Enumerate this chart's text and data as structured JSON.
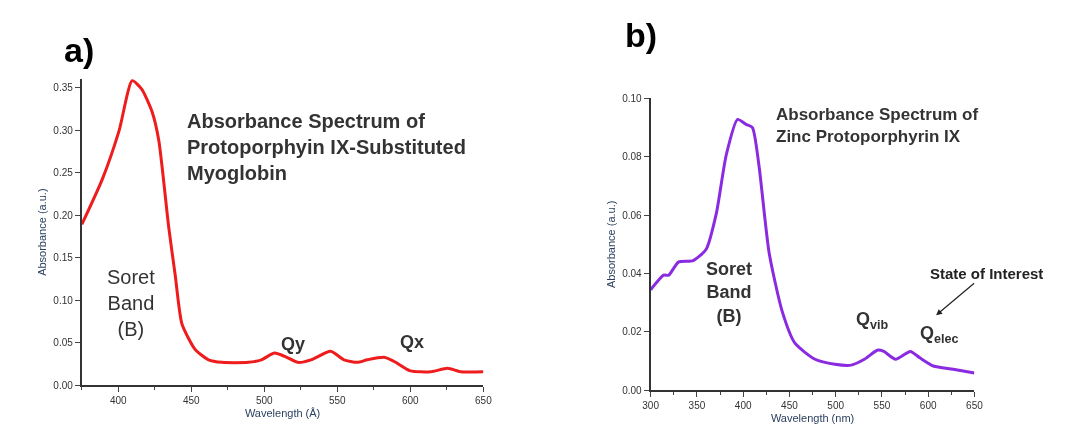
{
  "chart_data": [
    {
      "type": "line",
      "title": "a)",
      "xlabel": "Wavelength (Å)",
      "ylabel": "Absorbance (a.u.)",
      "annotations": [
        "Absorbance Spectrum of Protoporphyin IX-Substituted Myoglobin",
        "Soret Band (B)",
        "Qy",
        "Qx"
      ],
      "series": [
        {
          "color": "#ee1c1c",
          "x": [
            375,
            389,
            400.5,
            409.5,
            416,
            423,
            427.7,
            434.5,
            439,
            443.6,
            452.7,
            461.8,
            471,
            489,
            498,
            507,
            514,
            523,
            532,
            545.5,
            554.5,
            563.6,
            570.5,
            582,
            589,
            600,
            614,
            625.5,
            634.5,
            650
          ],
          "values": [
            0.189,
            0.242,
            0.299,
            0.358,
            0.348,
            0.322,
            0.288,
            0.186,
            0.129,
            0.072,
            0.042,
            0.03,
            0.027,
            0.027,
            0.03,
            0.038,
            0.034,
            0.027,
            0.03,
            0.04,
            0.03,
            0.027,
            0.03,
            0.033,
            0.028,
            0.017,
            0.016,
            0.02,
            0.016,
            0.016
          ]
        }
      ],
      "xlim": [
        375,
        650
      ],
      "xticks": [
        400,
        450,
        500,
        550,
        600,
        650
      ],
      "ylim": [
        0,
        0.36
      ],
      "yticks": [
        {
          "value": 0,
          "label": "0.00"
        },
        {
          "value": 0.05,
          "label": "0.05"
        },
        {
          "value": 0.1,
          "label": "0.10"
        },
        {
          "value": 0.15,
          "label": "0.15"
        },
        {
          "value": 0.2,
          "label": "0.20"
        },
        {
          "value": 0.25,
          "label": "0.25"
        },
        {
          "value": 0.3,
          "label": "0.30"
        },
        {
          "value": 0.35,
          "label": "0.35"
        }
      ],
      "marker": "none",
      "line_style": "solid"
    },
    {
      "type": "line",
      "title": "b)",
      "xlabel": "Wavelength (nm)",
      "ylabel": "Absorbance (a.u.)",
      "annotations": [
        "Absorbance Spectrum of Zinc Protoporphyrin IX",
        "Soret Band (B)",
        "Q$_{vib}$",
        "Q$_{elec}$",
        "State of Interest"
      ],
      "series": [
        {
          "color": "#8a2be2",
          "x": [
            300,
            314,
            319.5,
            330,
            346,
            360,
            371,
            381.7,
            394,
            403,
            410,
            417,
            428,
            442,
            456,
            477.7,
            499,
            516.8,
            531,
            545,
            552,
            564.8,
            580.7,
            591,
            605.6,
            627,
            650
          ],
          "values": [
            0.0344,
            0.0394,
            0.0394,
            0.0439,
            0.0444,
            0.0483,
            0.0606,
            0.0806,
            0.0928,
            0.0911,
            0.09,
            0.0772,
            0.0472,
            0.0272,
            0.0161,
            0.0106,
            0.0089,
            0.0086,
            0.0106,
            0.0137,
            0.0133,
            0.0106,
            0.0133,
            0.0111,
            0.0083,
            0.0072,
            0.0059
          ]
        }
      ],
      "xlim": [
        300,
        650
      ],
      "xticks": [
        300,
        350,
        400,
        450,
        500,
        550,
        600,
        650
      ],
      "ylim": [
        0,
        0.1
      ],
      "yticks": [
        {
          "value": 0,
          "label": "0.00"
        },
        {
          "value": 0.02,
          "label": "0.02"
        },
        {
          "value": 0.04,
          "label": "0.04"
        },
        {
          "value": 0.06,
          "label": "0.06"
        },
        {
          "value": 0.08,
          "label": "0.08"
        },
        {
          "value": 0.1,
          "label": "0.10"
        }
      ],
      "marker": "none",
      "line_style": "solid"
    }
  ]
}
